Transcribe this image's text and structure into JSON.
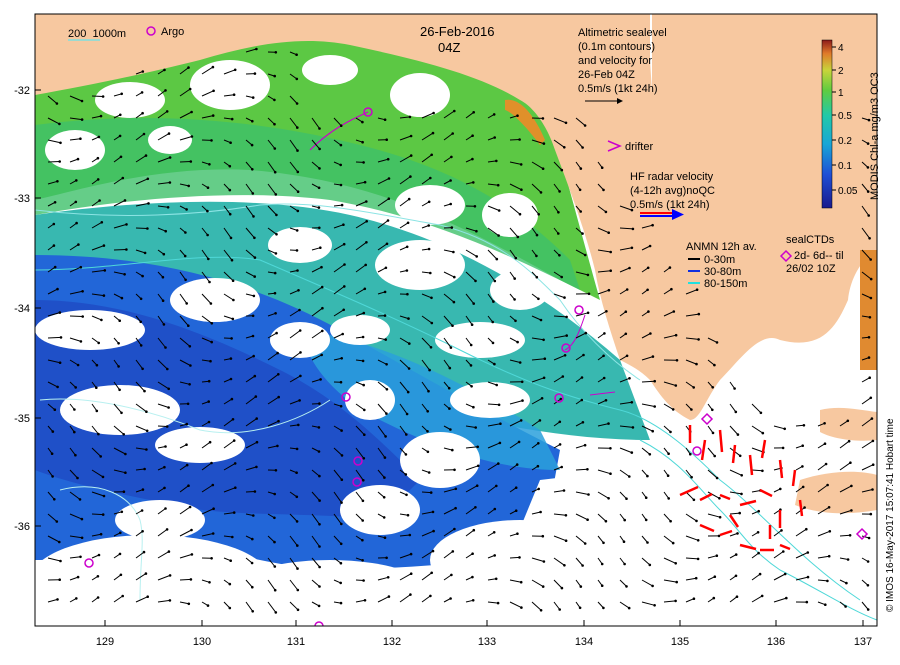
{
  "map": {
    "date_line": "26-Feb-2016",
    "time_line": "04Z",
    "credit": "© IMOS 16-May-2017 15:07:41 Hobart time",
    "x_ticks": [
      "129",
      "130",
      "131",
      "132",
      "133",
      "134",
      "135",
      "136",
      "137"
    ],
    "y_ticks": [
      "-32",
      "-33",
      "-34",
      "-35",
      "-36"
    ],
    "legend_contours": "200  1000m",
    "legend_argo": "Argo",
    "altimetric": {
      "line1": "Altimetric sealevel",
      "line2": "(0.1m contours)",
      "line3": "and velocity for",
      "line4": "26-Feb 04Z",
      "line5": "0.5m/s (1kt 24h)"
    },
    "drifter_label": "drifter",
    "hf_radar": {
      "line1": "HF radar velocity",
      "line2": "(4-12h avg)noQC",
      "line3": "0.5m/s (1kt 24h)"
    },
    "anmn": {
      "title": "ANMN 12h av.",
      "row1": "0-30m",
      "row2": "30-80m",
      "row3": "80-150m"
    },
    "sealctd": {
      "line1": "sealCTDs",
      "line2": "2d- 6d-- til",
      "line3": "26/02 10Z"
    },
    "colorbar": {
      "title": "MODIS Chl-a mg/m3 OC3",
      "ticks": [
        "4",
        "2",
        "1",
        "0.5",
        "0.2",
        "0.1",
        "0.05"
      ]
    }
  },
  "colors": {
    "land": "#f7c8a0",
    "argo": "#cc00cc",
    "hf_radar": "#ff0000",
    "contour": "#7fe0e0"
  }
}
